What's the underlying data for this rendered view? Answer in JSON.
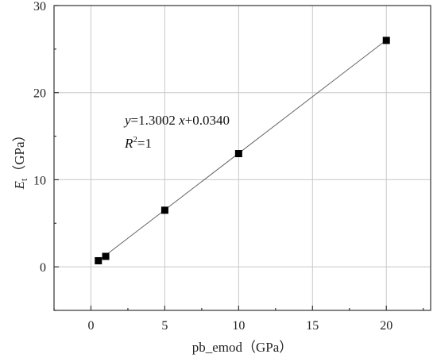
{
  "chart_data": {
    "type": "scatter",
    "title": "",
    "xlabel": "pb_emod（GPa）",
    "ylabel_main": "E",
    "ylabel_sub": "t",
    "ylabel_unit": "（GPa）",
    "xlim": [
      -2.5,
      23
    ],
    "ylim": [
      -5,
      30
    ],
    "xticks": [
      0,
      5,
      10,
      15,
      20
    ],
    "yticks": [
      0,
      10,
      20,
      30
    ],
    "grid": true,
    "series": [
      {
        "x": [
          0.5,
          1,
          5,
          10,
          20
        ],
        "y": [
          0.7,
          1.2,
          6.5,
          13,
          26
        ]
      }
    ],
    "fit": {
      "slope": 1.3002,
      "intercept": 0.034,
      "x_range": [
        0.5,
        20
      ]
    },
    "annotation": {
      "y_var": "y",
      "eq_text": "=1.3002 ",
      "x_var": "x",
      "eq_tail": "+0.0340",
      "r_var": "R",
      "r_sup": "2",
      "r_tail": "=1"
    }
  }
}
